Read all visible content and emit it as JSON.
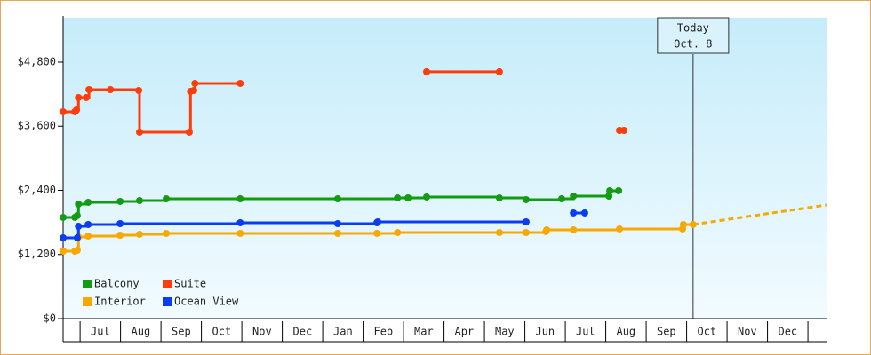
{
  "chart_data": {
    "type": "line",
    "step": true,
    "grid": false,
    "legend": "lower left",
    "xlim": [
      -0.42,
      18.46
    ],
    "x_separators": [
      0,
      1,
      2,
      3,
      4,
      5,
      6,
      7,
      8,
      9,
      10,
      11,
      12,
      13,
      14,
      15,
      16,
      17,
      18
    ],
    "xticks": [
      {
        "value": 0.5,
        "label": "Jul"
      },
      {
        "value": 1.5,
        "label": "Aug"
      },
      {
        "value": 2.5,
        "label": "Sep"
      },
      {
        "value": 3.5,
        "label": "Oct"
      },
      {
        "value": 4.5,
        "label": "Nov"
      },
      {
        "value": 5.5,
        "label": "Dec"
      },
      {
        "value": 6.5,
        "label": "Jan"
      },
      {
        "value": 7.5,
        "label": "Feb"
      },
      {
        "value": 8.5,
        "label": "Mar"
      },
      {
        "value": 9.5,
        "label": "Apr"
      },
      {
        "value": 10.5,
        "label": "May"
      },
      {
        "value": 11.5,
        "label": "Jun"
      },
      {
        "value": 12.5,
        "label": "Jul"
      },
      {
        "value": 13.5,
        "label": "Aug"
      },
      {
        "value": 14.5,
        "label": "Sep"
      },
      {
        "value": 15.5,
        "label": "Oct"
      },
      {
        "value": 16.5,
        "label": "Nov"
      },
      {
        "value": 17.5,
        "label": "Dec"
      }
    ],
    "ylim": [
      0,
      5630
    ],
    "yticks": [
      {
        "value": 0,
        "label": "$0"
      },
      {
        "value": 1200,
        "label": "$1,200"
      },
      {
        "value": 2400,
        "label": "$2,400"
      },
      {
        "value": 3600,
        "label": "$3,600"
      },
      {
        "value": 4800,
        "label": "$4,800"
      }
    ],
    "today": {
      "x": 15.16,
      "label": "Today",
      "date": "Oct. 8"
    },
    "series": [
      {
        "name": "Balcony",
        "color": "#129c12",
        "x": [
          -0.42,
          -0.13,
          -0.07,
          -0.04,
          0.2,
          0.99,
          1.47,
          2.13,
          3.96,
          6.37,
          7.85,
          8.11,
          8.57,
          10.37,
          11.03,
          11.91,
          12.2,
          13.08,
          13.1,
          13.32
        ],
        "values": [
          1894,
          1894,
          1927,
          2143,
          2176,
          2193,
          2209,
          2242,
          2242,
          2242,
          2259,
          2259,
          2276,
          2259,
          2226,
          2242,
          2292,
          2292,
          2392,
          2392
        ]
      },
      {
        "name": "Suite",
        "color": "#ff3c0a",
        "x": [
          -0.42,
          -0.13,
          -0.09,
          -0.04,
          0.15,
          0.22,
          0.75,
          1.45,
          1.47,
          2.7,
          2.73,
          2.81,
          2.84,
          3.96,
          null,
          8.57,
          10.37,
          null,
          13.34,
          13.45
        ],
        "values": [
          3870,
          3870,
          3903,
          4136,
          4136,
          4285,
          4285,
          4269,
          3488,
          3488,
          4252,
          4269,
          4402,
          4402,
          null,
          4618,
          4618,
          null,
          3521,
          3521
        ]
      },
      {
        "name": "Interior",
        "color": "#f8a800",
        "x": [
          -0.42,
          -0.13,
          -0.07,
          -0.04,
          0.2,
          0.99,
          1.47,
          2.13,
          3.96,
          6.37,
          7.34,
          7.85,
          10.37,
          11.03,
          11.52,
          11.54,
          12.2,
          13.34,
          14.9,
          14.92,
          15.16
        ],
        "values": [
          1262,
          1262,
          1279,
          1528,
          1545,
          1561,
          1578,
          1595,
          1595,
          1595,
          1595,
          1611,
          1611,
          1611,
          1628,
          1661,
          1661,
          1678,
          1678,
          1761,
          1761
        ]
      },
      {
        "name": "Ocean View",
        "color": "#0a3cf0",
        "x": [
          -0.42,
          -0.07,
          -0.04,
          0.2,
          0.99,
          3.96,
          6.37,
          7.34,
          7.36,
          11.03,
          null,
          12.2,
          12.48
        ],
        "values": [
          1512,
          1512,
          1727,
          1761,
          1777,
          1794,
          1777,
          1794,
          1810,
          1810,
          null,
          1977,
          1977
        ]
      }
    ],
    "projection": {
      "series": 2,
      "x": [
        15.16,
        18.46
      ],
      "values": [
        1761,
        2126
      ]
    }
  }
}
